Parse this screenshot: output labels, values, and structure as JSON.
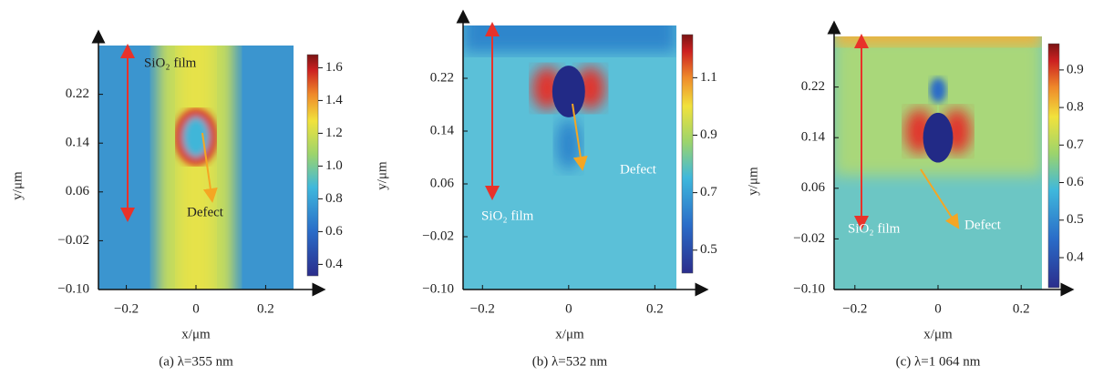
{
  "chart_data": [
    {
      "type": "heatmap",
      "title": "(a) λ=355 nm",
      "x_label": "x/μm",
      "y_label": "y/μm",
      "xlim": [
        -0.28,
        0.28
      ],
      "xticks": [
        {
          "value": -0.2,
          "label": "−0.2"
        },
        0,
        0.2
      ],
      "ylim": [
        -0.1,
        0.3
      ],
      "yticks": [
        {
          "value": -0.1,
          "label": "−0.10"
        },
        {
          "value": -0.02,
          "label": "−0.02"
        },
        0.06,
        0.14,
        0.22
      ],
      "colorbar": {
        "lim": [
          0.33,
          1.68
        ],
        "ticks": [
          0.4,
          0.6,
          0.8,
          {
            "value": 1,
            "label": "1.0"
          },
          1.2,
          1.4,
          1.6
        ]
      },
      "annotations": [
        "SiO₂ film",
        "Defect"
      ]
    },
    {
      "type": "heatmap",
      "title": "(b) λ=532 nm",
      "x_label": "x/μm",
      "y_label": "y/μm",
      "xlim": [
        -0.245,
        0.25
      ],
      "xticks": [
        {
          "value": -0.2,
          "label": "−0.2"
        },
        0,
        0.2
      ],
      "ylim": [
        -0.1,
        0.3
      ],
      "yticks": [
        {
          "value": -0.1,
          "label": "−0.10"
        },
        {
          "value": -0.02,
          "label": "−0.02"
        },
        0.06,
        0.14,
        0.22
      ],
      "colorbar": {
        "lim": [
          0.42,
          1.25
        ],
        "ticks": [
          0.5,
          0.7,
          0.9,
          1.1
        ]
      },
      "annotations": [
        "SiO₂ film",
        "Defect"
      ]
    },
    {
      "type": "heatmap",
      "title": "(c) λ=1 064 nm",
      "x_label": "x/μm",
      "y_label": "y/μm",
      "xlim": [
        -0.25,
        0.25
      ],
      "xticks": [
        {
          "value": -0.2,
          "label": "−0.2"
        },
        0,
        0.2
      ],
      "ylim": [
        -0.1,
        0.3
      ],
      "yticks": [
        {
          "value": -0.1,
          "label": "−0.10"
        },
        {
          "value": -0.02,
          "label": "−0.02"
        },
        0.06,
        0.14,
        0.22
      ],
      "colorbar": {
        "lim": [
          0.32,
          0.97
        ],
        "ticks": [
          0.4,
          0.5,
          0.6,
          0.7,
          0.8,
          0.9
        ]
      },
      "annotations": [
        "SiO₂ film",
        "Defect"
      ]
    }
  ]
}
